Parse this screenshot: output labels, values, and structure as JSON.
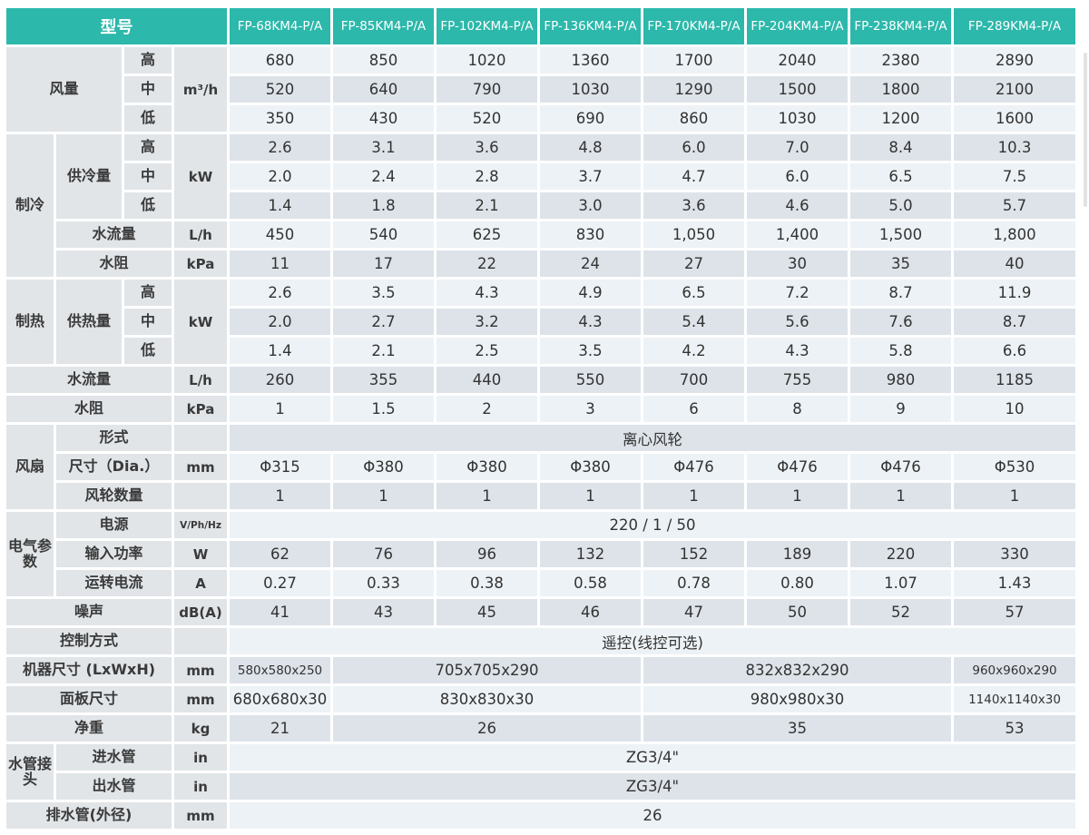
{
  "page": {
    "kind": "fan-coil-unit-specification-table"
  },
  "colors": {
    "accent": "#2cb8ab",
    "label_bg": "#e1e5e8",
    "row_light": "#edf2f6",
    "row_dark": "#dde3e9",
    "text": "#333333"
  },
  "header": {
    "title": "型号",
    "models": [
      "FP-68KM4-P/A",
      "FP-85KM4-P/A",
      "FP-102KM4-P/A",
      "FP-136KM4-P/A",
      "FP-170KM4-P/A",
      "FP-204KM4-P/A",
      "FP-238KM4-P/A",
      "FP-289KM4-P/A"
    ]
  },
  "table": {
    "rows": [
      {
        "cells": [
          {
            "t": "风量",
            "k": "lab",
            "cs": 2,
            "rs": 3
          },
          {
            "t": "高",
            "k": "lab"
          },
          {
            "t": "m³/h",
            "k": "unit",
            "rs": 3
          },
          {
            "t": "680",
            "k": "d"
          },
          {
            "t": "850",
            "k": "d"
          },
          {
            "t": "1020",
            "k": "d"
          },
          {
            "t": "1360",
            "k": "d"
          },
          {
            "t": "1700",
            "k": "d"
          },
          {
            "t": "2040",
            "k": "d"
          },
          {
            "t": "2380",
            "k": "d"
          },
          {
            "t": "2890",
            "k": "d"
          }
        ]
      },
      {
        "cells": [
          {
            "t": "中",
            "k": "lab"
          },
          {
            "t": "520",
            "k": "d"
          },
          {
            "t": "640",
            "k": "d"
          },
          {
            "t": "790",
            "k": "d"
          },
          {
            "t": "1030",
            "k": "d"
          },
          {
            "t": "1290",
            "k": "d"
          },
          {
            "t": "1500",
            "k": "d"
          },
          {
            "t": "1800",
            "k": "d"
          },
          {
            "t": "2100",
            "k": "d"
          }
        ]
      },
      {
        "cells": [
          {
            "t": "低",
            "k": "lab"
          },
          {
            "t": "350",
            "k": "d"
          },
          {
            "t": "430",
            "k": "d"
          },
          {
            "t": "520",
            "k": "d"
          },
          {
            "t": "690",
            "k": "d"
          },
          {
            "t": "860",
            "k": "d"
          },
          {
            "t": "1030",
            "k": "d"
          },
          {
            "t": "1200",
            "k": "d"
          },
          {
            "t": "1600",
            "k": "d"
          }
        ]
      },
      {
        "cells": [
          {
            "t": "制冷",
            "k": "lab",
            "rs": 5
          },
          {
            "t": "供冷量",
            "k": "lab",
            "rs": 3
          },
          {
            "t": "高",
            "k": "lab"
          },
          {
            "t": "kW",
            "k": "unit",
            "rs": 3
          },
          {
            "t": "2.6",
            "k": "d"
          },
          {
            "t": "3.1",
            "k": "d"
          },
          {
            "t": "3.6",
            "k": "d"
          },
          {
            "t": "4.8",
            "k": "d"
          },
          {
            "t": "6.0",
            "k": "d"
          },
          {
            "t": "7.0",
            "k": "d"
          },
          {
            "t": "8.4",
            "k": "d"
          },
          {
            "t": "10.3",
            "k": "d"
          }
        ]
      },
      {
        "cells": [
          {
            "t": "中",
            "k": "lab"
          },
          {
            "t": "2.0",
            "k": "d"
          },
          {
            "t": "2.4",
            "k": "d"
          },
          {
            "t": "2.8",
            "k": "d"
          },
          {
            "t": "3.7",
            "k": "d"
          },
          {
            "t": "4.7",
            "k": "d"
          },
          {
            "t": "6.0",
            "k": "d"
          },
          {
            "t": "6.5",
            "k": "d"
          },
          {
            "t": "7.5",
            "k": "d"
          }
        ]
      },
      {
        "cells": [
          {
            "t": "低",
            "k": "lab"
          },
          {
            "t": "1.4",
            "k": "d"
          },
          {
            "t": "1.8",
            "k": "d"
          },
          {
            "t": "2.1",
            "k": "d"
          },
          {
            "t": "3.0",
            "k": "d"
          },
          {
            "t": "3.6",
            "k": "d"
          },
          {
            "t": "4.6",
            "k": "d"
          },
          {
            "t": "5.0",
            "k": "d"
          },
          {
            "t": "5.7",
            "k": "d"
          }
        ]
      },
      {
        "cells": [
          {
            "t": "水流量",
            "k": "lab",
            "cs": 2
          },
          {
            "t": "L/h",
            "k": "unit"
          },
          {
            "t": "450",
            "k": "d"
          },
          {
            "t": "540",
            "k": "d"
          },
          {
            "t": "625",
            "k": "d"
          },
          {
            "t": "830",
            "k": "d"
          },
          {
            "t": "1,050",
            "k": "d"
          },
          {
            "t": "1,400",
            "k": "d"
          },
          {
            "t": "1,500",
            "k": "d"
          },
          {
            "t": "1,800",
            "k": "d"
          }
        ]
      },
      {
        "cells": [
          {
            "t": "水阻",
            "k": "lab",
            "cs": 2
          },
          {
            "t": "kPa",
            "k": "unit"
          },
          {
            "t": "11",
            "k": "d"
          },
          {
            "t": "17",
            "k": "d"
          },
          {
            "t": "22",
            "k": "d"
          },
          {
            "t": "24",
            "k": "d"
          },
          {
            "t": "27",
            "k": "d"
          },
          {
            "t": "30",
            "k": "d"
          },
          {
            "t": "35",
            "k": "d"
          },
          {
            "t": "40",
            "k": "d"
          }
        ]
      },
      {
        "cells": [
          {
            "t": "制热",
            "k": "lab",
            "rs": 3
          },
          {
            "t": "供热量",
            "k": "lab",
            "rs": 3
          },
          {
            "t": "高",
            "k": "lab"
          },
          {
            "t": "kW",
            "k": "unit",
            "rs": 3
          },
          {
            "t": "2.6",
            "k": "d"
          },
          {
            "t": "3.5",
            "k": "d"
          },
          {
            "t": "4.3",
            "k": "d"
          },
          {
            "t": "4.9",
            "k": "d"
          },
          {
            "t": "6.5",
            "k": "d"
          },
          {
            "t": "7.2",
            "k": "d"
          },
          {
            "t": "8.7",
            "k": "d"
          },
          {
            "t": "11.9",
            "k": "d"
          }
        ]
      },
      {
        "cells": [
          {
            "t": "中",
            "k": "lab"
          },
          {
            "t": "2.0",
            "k": "d"
          },
          {
            "t": "2.7",
            "k": "d"
          },
          {
            "t": "3.2",
            "k": "d"
          },
          {
            "t": "4.3",
            "k": "d"
          },
          {
            "t": "5.4",
            "k": "d"
          },
          {
            "t": "5.6",
            "k": "d"
          },
          {
            "t": "7.6",
            "k": "d"
          },
          {
            "t": "8.7",
            "k": "d"
          }
        ]
      },
      {
        "cells": [
          {
            "t": "低",
            "k": "lab"
          },
          {
            "t": "1.4",
            "k": "d"
          },
          {
            "t": "2.1",
            "k": "d"
          },
          {
            "t": "2.5",
            "k": "d"
          },
          {
            "t": "3.5",
            "k": "d"
          },
          {
            "t": "4.2",
            "k": "d"
          },
          {
            "t": "4.3",
            "k": "d"
          },
          {
            "t": "5.8",
            "k": "d"
          },
          {
            "t": "6.6",
            "k": "d"
          }
        ]
      },
      {
        "cells": [
          {
            "t": "水流量",
            "k": "lab",
            "cs": 3
          },
          {
            "t": "L/h",
            "k": "unit"
          },
          {
            "t": "260",
            "k": "d"
          },
          {
            "t": "355",
            "k": "d"
          },
          {
            "t": "440",
            "k": "d"
          },
          {
            "t": "550",
            "k": "d"
          },
          {
            "t": "700",
            "k": "d"
          },
          {
            "t": "755",
            "k": "d"
          },
          {
            "t": "980",
            "k": "d"
          },
          {
            "t": "1185",
            "k": "d"
          }
        ]
      },
      {
        "cells": [
          {
            "t": "水阻",
            "k": "lab",
            "cs": 3
          },
          {
            "t": "kPa",
            "k": "unit"
          },
          {
            "t": "1",
            "k": "d"
          },
          {
            "t": "1.5",
            "k": "d"
          },
          {
            "t": "2",
            "k": "d"
          },
          {
            "t": "3",
            "k": "d"
          },
          {
            "t": "6",
            "k": "d"
          },
          {
            "t": "8",
            "k": "d"
          },
          {
            "t": "9",
            "k": "d"
          },
          {
            "t": "10",
            "k": "d"
          }
        ]
      },
      {
        "cells": [
          {
            "t": "风扇",
            "k": "lab",
            "rs": 3
          },
          {
            "t": "形式",
            "k": "lab",
            "cs": 2
          },
          {
            "t": "",
            "k": "unit"
          },
          {
            "t": "离心风轮",
            "k": "d",
            "cs": 8
          }
        ]
      },
      {
        "cells": [
          {
            "t": "尺寸（Dia.）",
            "k": "lab",
            "cs": 2
          },
          {
            "t": "mm",
            "k": "unit"
          },
          {
            "t": "Φ315",
            "k": "d"
          },
          {
            "t": "Φ380",
            "k": "d"
          },
          {
            "t": "Φ380",
            "k": "d"
          },
          {
            "t": "Φ380",
            "k": "d"
          },
          {
            "t": "Φ476",
            "k": "d"
          },
          {
            "t": "Φ476",
            "k": "d"
          },
          {
            "t": "Φ476",
            "k": "d"
          },
          {
            "t": "Φ530",
            "k": "d"
          }
        ]
      },
      {
        "cells": [
          {
            "t": "风轮数量",
            "k": "lab",
            "cs": 2
          },
          {
            "t": "",
            "k": "unit"
          },
          {
            "t": "1",
            "k": "d"
          },
          {
            "t": "1",
            "k": "d"
          },
          {
            "t": "1",
            "k": "d"
          },
          {
            "t": "1",
            "k": "d"
          },
          {
            "t": "1",
            "k": "d"
          },
          {
            "t": "1",
            "k": "d"
          },
          {
            "t": "1",
            "k": "d"
          },
          {
            "t": "1",
            "k": "d"
          }
        ]
      },
      {
        "cells": [
          {
            "t": "电气参数",
            "k": "lab",
            "rs": 3
          },
          {
            "t": "电源",
            "k": "lab",
            "cs": 2
          },
          {
            "t": "V/Ph/Hz",
            "k": "unit",
            "small": true
          },
          {
            "t": "220 / 1 / 50",
            "k": "d",
            "cs": 8
          }
        ]
      },
      {
        "cells": [
          {
            "t": "输入功率",
            "k": "lab",
            "cs": 2
          },
          {
            "t": "W",
            "k": "unit"
          },
          {
            "t": "62",
            "k": "d"
          },
          {
            "t": "76",
            "k": "d"
          },
          {
            "t": "96",
            "k": "d"
          },
          {
            "t": "132",
            "k": "d"
          },
          {
            "t": "152",
            "k": "d"
          },
          {
            "t": "189",
            "k": "d"
          },
          {
            "t": "220",
            "k": "d"
          },
          {
            "t": "330",
            "k": "d"
          }
        ]
      },
      {
        "cells": [
          {
            "t": "运转电流",
            "k": "lab",
            "cs": 2
          },
          {
            "t": "A",
            "k": "unit"
          },
          {
            "t": "0.27",
            "k": "d"
          },
          {
            "t": "0.33",
            "k": "d"
          },
          {
            "t": "0.38",
            "k": "d"
          },
          {
            "t": "0.58",
            "k": "d"
          },
          {
            "t": "0.78",
            "k": "d"
          },
          {
            "t": "0.80",
            "k": "d"
          },
          {
            "t": "1.07",
            "k": "d"
          },
          {
            "t": "1.43",
            "k": "d"
          }
        ]
      },
      {
        "cells": [
          {
            "t": "噪声",
            "k": "lab",
            "cs": 3
          },
          {
            "t": "dB(A)",
            "k": "unit"
          },
          {
            "t": "41",
            "k": "d"
          },
          {
            "t": "43",
            "k": "d"
          },
          {
            "t": "45",
            "k": "d"
          },
          {
            "t": "46",
            "k": "d"
          },
          {
            "t": "47",
            "k": "d"
          },
          {
            "t": "50",
            "k": "d"
          },
          {
            "t": "52",
            "k": "d"
          },
          {
            "t": "57",
            "k": "d"
          }
        ]
      },
      {
        "cells": [
          {
            "t": "控制方式",
            "k": "lab",
            "cs": 3
          },
          {
            "t": "",
            "k": "unit"
          },
          {
            "t": "遥控(线控可选)",
            "k": "d",
            "cs": 8
          }
        ]
      },
      {
        "cells": [
          {
            "t": "机器尺寸 (LxWxH)",
            "k": "lab",
            "cs": 3
          },
          {
            "t": "mm",
            "k": "unit"
          },
          {
            "t": "580x580x250",
            "k": "d"
          },
          {
            "t": "705x705x290",
            "k": "d",
            "cs": 3
          },
          {
            "t": "832x832x290",
            "k": "d",
            "cs": 3
          },
          {
            "t": "960x960x290",
            "k": "d"
          }
        ]
      },
      {
        "cells": [
          {
            "t": "面板尺寸",
            "k": "lab",
            "cs": 3
          },
          {
            "t": "mm",
            "k": "unit"
          },
          {
            "t": "680x680x30",
            "k": "d"
          },
          {
            "t": "830x830x30",
            "k": "d",
            "cs": 3
          },
          {
            "t": "980x980x30",
            "k": "d",
            "cs": 3
          },
          {
            "t": "1140x1140x30",
            "k": "d"
          }
        ]
      },
      {
        "cells": [
          {
            "t": "净重",
            "k": "lab",
            "cs": 3
          },
          {
            "t": "kg",
            "k": "unit"
          },
          {
            "t": "21",
            "k": "d"
          },
          {
            "t": "26",
            "k": "d",
            "cs": 3
          },
          {
            "t": "35",
            "k": "d",
            "cs": 3
          },
          {
            "t": "53",
            "k": "d"
          }
        ]
      },
      {
        "cells": [
          {
            "t": "水管接头",
            "k": "lab",
            "rs": 2
          },
          {
            "t": "进水管",
            "k": "lab",
            "cs": 2
          },
          {
            "t": "in",
            "k": "unit"
          },
          {
            "t": "ZG3/4\"",
            "k": "d",
            "cs": 8
          }
        ]
      },
      {
        "cells": [
          {
            "t": "出水管",
            "k": "lab",
            "cs": 2
          },
          {
            "t": "in",
            "k": "unit"
          },
          {
            "t": "ZG3/4\"",
            "k": "d",
            "cs": 8
          }
        ]
      },
      {
        "cells": [
          {
            "t": "排水管(外径)",
            "k": "lab",
            "cs": 3
          },
          {
            "t": "mm",
            "k": "unit"
          },
          {
            "t": "26",
            "k": "d",
            "cs": 8
          }
        ]
      }
    ]
  }
}
